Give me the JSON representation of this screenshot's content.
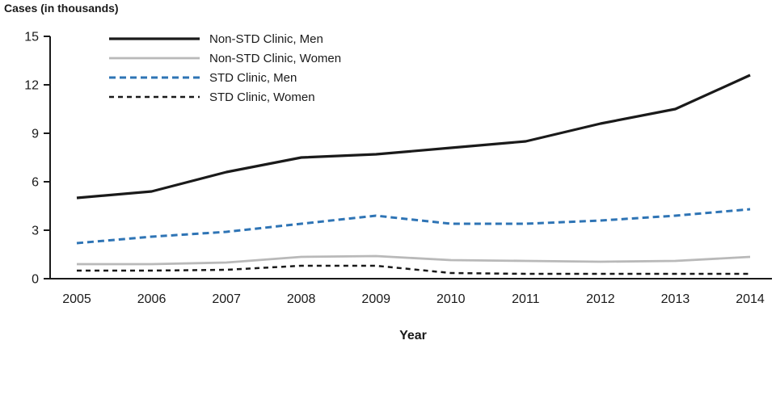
{
  "title": "Cases (in thousands)",
  "xlabel": "Year",
  "chart_data": {
    "type": "line",
    "title": "Cases (in thousands)",
    "xlabel": "Year",
    "ylabel": "Cases (in thousands)",
    "x": [
      2005,
      2006,
      2007,
      2008,
      2009,
      2010,
      2011,
      2012,
      2013,
      2014
    ],
    "series": [
      {
        "name": "Non-STD Clinic, Men",
        "color": "#1a1a1a",
        "dash": null,
        "width": 3.2,
        "values": [
          5.0,
          5.4,
          6.6,
          7.5,
          7.7,
          8.1,
          8.5,
          9.6,
          10.5,
          12.6
        ]
      },
      {
        "name": "Non-STD Clinic, Women",
        "color": "#b9b9b9",
        "dash": null,
        "width": 2.8,
        "values": [
          0.9,
          0.9,
          1.0,
          1.35,
          1.4,
          1.15,
          1.1,
          1.05,
          1.1,
          1.35
        ]
      },
      {
        "name": "STD Clinic, Men",
        "color": "#2e74b5",
        "dash": "8 5",
        "width": 3,
        "values": [
          2.2,
          2.6,
          2.9,
          3.4,
          3.9,
          3.4,
          3.4,
          3.6,
          3.9,
          4.3
        ]
      },
      {
        "name": "STD Clinic, Women",
        "color": "#1a1a1a",
        "dash": "6 5",
        "width": 2.5,
        "values": [
          0.5,
          0.5,
          0.55,
          0.8,
          0.8,
          0.35,
          0.3,
          0.3,
          0.3,
          0.3
        ]
      }
    ],
    "ylim": [
      0,
      15
    ],
    "yticks": [
      0,
      3,
      6,
      9,
      12,
      15
    ],
    "grid": false,
    "legend_position": "top-left",
    "axis_color": "#1a1a1a"
  }
}
